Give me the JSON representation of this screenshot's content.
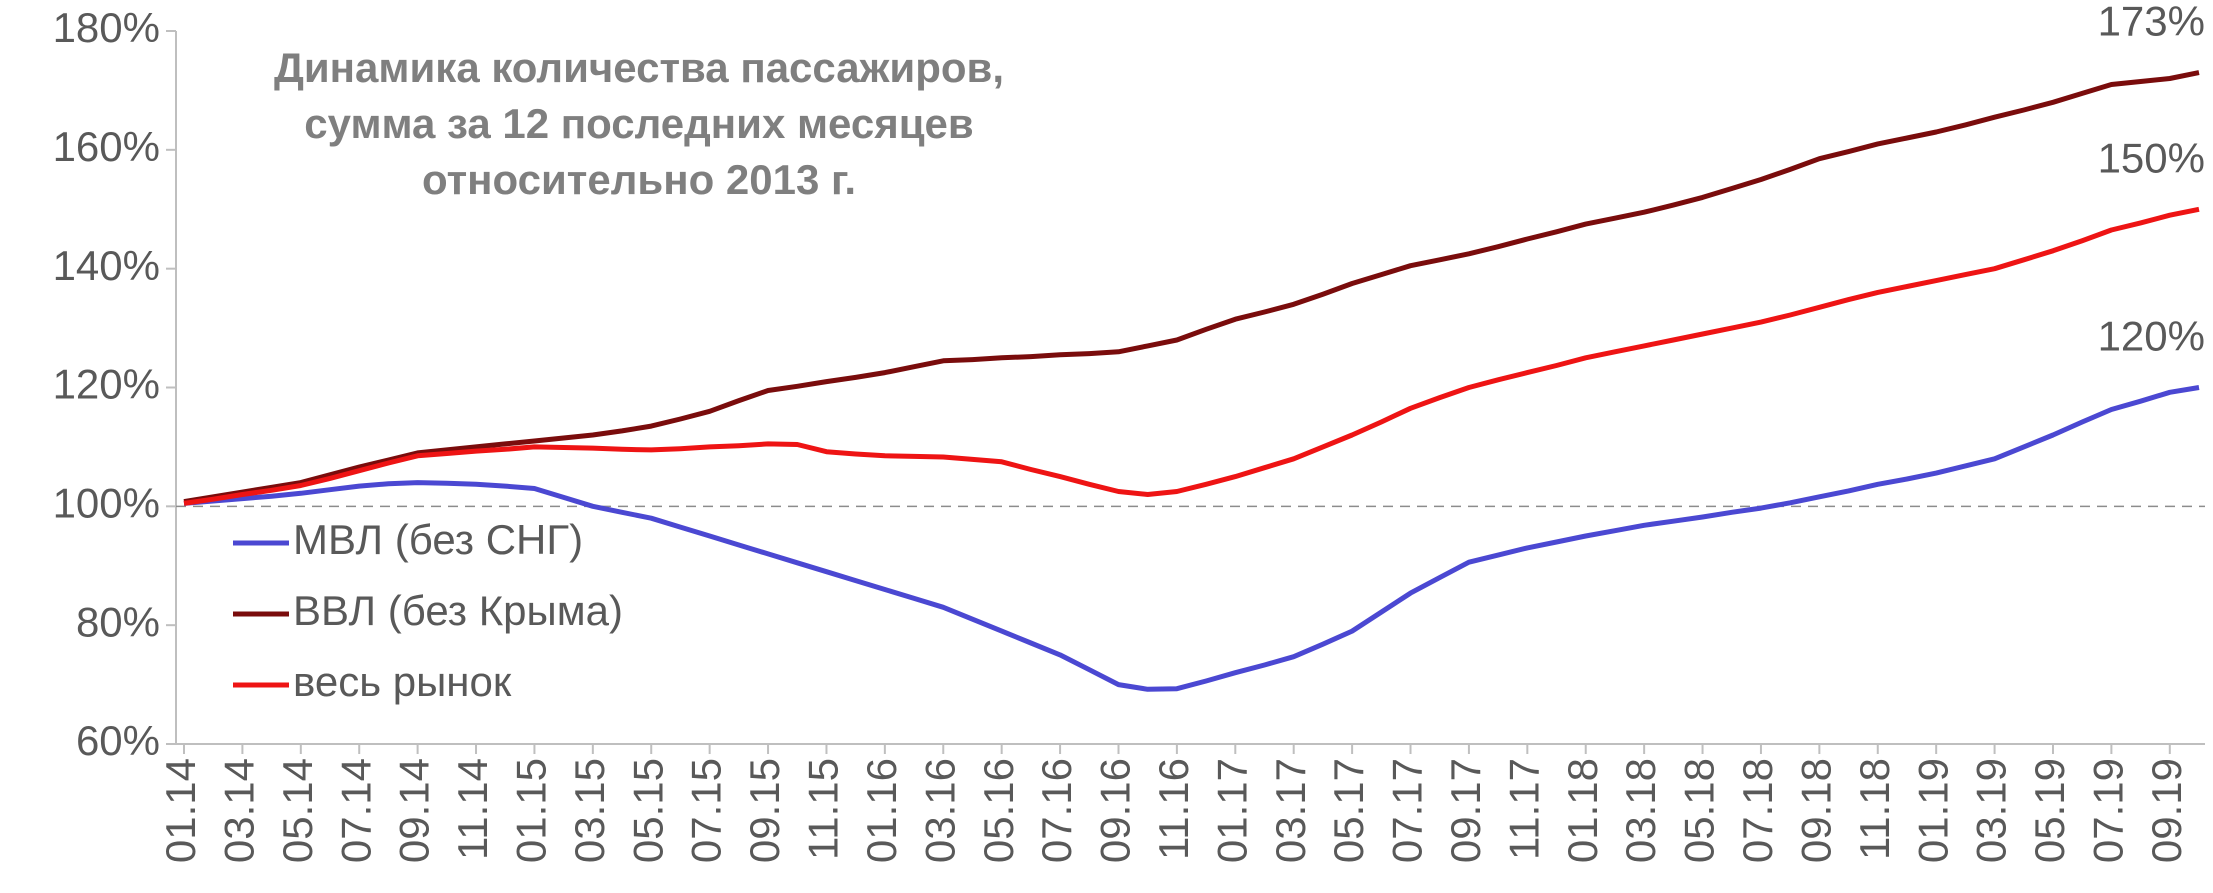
{
  "chart_data": {
    "type": "line",
    "title": [
      "Динамика количества пассажиров,",
      "сумма за 12 последних месяцев",
      "относительно 2013 г."
    ],
    "categories": [
      "01.14",
      null,
      "03.14",
      null,
      "05.14",
      null,
      "07.14",
      null,
      "09.14",
      null,
      "11.14",
      null,
      "01.15",
      null,
      "03.15",
      null,
      "05.15",
      null,
      "07.15",
      null,
      "09.15",
      null,
      "11.15",
      null,
      "01.16",
      null,
      "03.16",
      null,
      "05.16",
      null,
      "07.16",
      null,
      "09.16",
      null,
      "11.16",
      null,
      "01.17",
      null,
      "03.17",
      null,
      "05.17",
      null,
      "07.17",
      null,
      "09.17",
      null,
      "11.17",
      null,
      "01.18",
      null,
      "03.18",
      null,
      "05.18",
      null,
      "07.18",
      null,
      "09.18",
      null,
      "11.18",
      null,
      "01.19",
      null,
      "03.19",
      null,
      "05.19",
      null,
      "07.19",
      null,
      "09.19",
      null
    ],
    "series": [
      {
        "name": "МВЛ (без СНГ)",
        "color": "#4b48d2",
        "values": [
          100.5,
          100.9,
          101.3,
          101.7,
          102.2,
          102.8,
          103.4,
          103.8,
          104,
          103.9,
          103.7,
          103.4,
          103,
          101.5,
          100,
          99,
          98,
          96.5,
          95,
          93.5,
          92,
          90.5,
          89,
          87.5,
          86,
          84.5,
          83,
          81,
          79,
          77,
          75,
          72.5,
          70,
          69.2,
          69.3,
          70.6,
          72,
          73.3,
          74.7,
          76.8,
          79,
          82.2,
          85.4,
          88,
          90.6,
          91.8,
          93,
          94,
          95,
          95.9,
          96.8,
          97.5,
          98.2,
          99,
          99.7,
          100.6,
          101.6,
          102.6,
          103.7,
          104.6,
          105.6,
          106.8,
          108,
          110,
          112,
          114.2,
          116.3,
          117.7,
          119.2,
          120
        ],
        "value_labels": [
          null,
          null,
          null,
          null,
          null,
          null,
          null,
          null,
          null,
          null,
          null,
          null,
          null,
          null,
          null,
          null,
          null,
          null,
          null,
          null,
          null,
          null,
          null,
          null,
          null,
          null,
          null,
          null,
          null,
          null,
          null,
          null,
          null,
          null,
          null,
          null,
          null,
          null,
          null,
          null,
          null,
          null,
          null,
          null,
          null,
          null,
          null,
          null,
          null,
          null,
          null,
          null,
          null,
          null,
          null,
          null,
          null,
          null,
          null,
          null,
          null,
          null,
          null,
          null,
          null,
          null,
          null,
          null,
          null,
          "120%"
        ]
      },
      {
        "name": "ВВЛ (без Крыма)",
        "color": "#7a0c0c",
        "values": [
          100.8,
          101.6,
          102.4,
          103.2,
          104,
          105.3,
          106.6,
          107.8,
          109,
          109.5,
          110,
          110.5,
          111,
          111.5,
          112,
          112.7,
          113.5,
          114.7,
          116,
          117.8,
          119.5,
          120.2,
          121,
          121.7,
          122.5,
          123.5,
          124.5,
          124.7,
          125,
          125.2,
          125.5,
          125.7,
          126,
          127,
          128,
          129.8,
          131.5,
          132.7,
          134,
          135.7,
          137.5,
          139,
          140.5,
          141.5,
          142.5,
          143.7,
          145,
          146.2,
          147.5,
          148.5,
          149.5,
          150.7,
          152,
          153.5,
          155,
          156.7,
          158.5,
          159.7,
          161,
          162,
          163,
          164.2,
          165.5,
          166.7,
          168,
          169.5,
          171,
          171.5,
          172,
          173
        ],
        "value_labels": [
          null,
          null,
          null,
          null,
          null,
          null,
          null,
          null,
          null,
          null,
          null,
          null,
          null,
          null,
          null,
          null,
          null,
          null,
          null,
          null,
          null,
          null,
          null,
          null,
          null,
          null,
          null,
          null,
          null,
          null,
          null,
          null,
          null,
          null,
          null,
          null,
          null,
          null,
          null,
          null,
          null,
          null,
          null,
          null,
          null,
          null,
          null,
          null,
          null,
          null,
          null,
          null,
          null,
          null,
          null,
          null,
          null,
          null,
          null,
          null,
          null,
          null,
          null,
          null,
          null,
          null,
          null,
          null,
          null,
          "173%"
        ]
      },
      {
        "name": "весь рынок",
        "color": "#ee1414",
        "values": [
          100.5,
          101.2,
          102,
          102.7,
          103.5,
          104.7,
          106,
          107.3,
          108.5,
          108.9,
          109.3,
          109.6,
          110,
          109.9,
          109.8,
          109.6,
          109.5,
          109.7,
          110,
          110.2,
          110.5,
          110.4,
          109.2,
          108.8,
          108.5,
          108.4,
          108.3,
          107.9,
          107.5,
          106.2,
          105,
          103.7,
          102.5,
          102,
          102.5,
          103.7,
          105,
          106.5,
          108,
          110,
          112,
          114.2,
          116.5,
          118.3,
          120,
          121.3,
          122.5,
          123.7,
          125,
          126,
          127,
          128,
          129,
          130,
          131,
          132.2,
          133.5,
          134.8,
          136,
          137,
          138,
          139,
          140,
          141.5,
          143,
          144.7,
          146.5,
          147.7,
          149,
          150
        ],
        "value_labels": [
          null,
          null,
          null,
          null,
          null,
          null,
          null,
          null,
          null,
          null,
          null,
          null,
          null,
          null,
          null,
          null,
          null,
          null,
          null,
          null,
          null,
          null,
          null,
          null,
          null,
          null,
          null,
          null,
          null,
          null,
          null,
          null,
          null,
          null,
          null,
          null,
          null,
          null,
          null,
          null,
          null,
          null,
          null,
          null,
          null,
          null,
          null,
          null,
          null,
          null,
          null,
          null,
          null,
          null,
          null,
          null,
          null,
          null,
          null,
          null,
          null,
          null,
          null,
          null,
          null,
          null,
          null,
          null,
          null,
          "150%"
        ]
      }
    ],
    "ylim": [
      60,
      180
    ],
    "yticks": [
      {
        "value": 60,
        "label": "60%"
      },
      {
        "value": 80,
        "label": "80%"
      },
      {
        "value": 100,
        "label": "100%"
      },
      {
        "value": 120,
        "label": "120%"
      },
      {
        "value": 140,
        "label": "140%"
      },
      {
        "value": 160,
        "label": "160%"
      },
      {
        "value": 180,
        "label": "180%"
      }
    ],
    "reference_line": 100,
    "legend": "left"
  }
}
